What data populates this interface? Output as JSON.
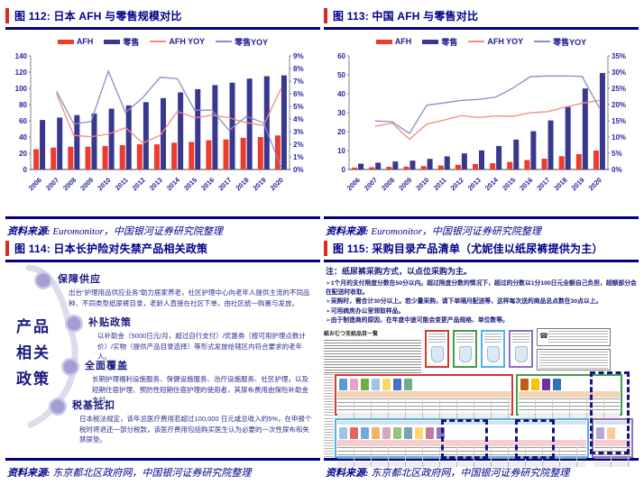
{
  "legend": {
    "afh": "AFH",
    "retail": "零售",
    "afh_yoy": "AFH YOY",
    "retail_yoy": "零售YOY"
  },
  "colors": {
    "afh_bar": "#ee3b30",
    "retail_bar": "#38388f",
    "afh_yoy_line": "#f48a80",
    "retail_yoy_line": "#8c8cc8",
    "title_navy": "#00008b",
    "accent_red": "#d92b21",
    "tick_text": "#2525a0"
  },
  "figures": {
    "fig112": {
      "title": "图 112: 日本 AFH 与零售规模对比",
      "source_label": "资料来源: ",
      "source_text": "Euromonitor，中国银河证券研究院整理"
    },
    "fig113": {
      "title": "图 113: 中国 AFH 与零售对比",
      "source_label": "资料来源: ",
      "source_text": "Euromonitor，中国银河证券研究院整理"
    },
    "fig114": {
      "title": "图 114: 日本长护险对失禁产品相关政策",
      "source_label": "资料来源: ",
      "source_text": "东京都北区政府网，中国银河证券研究院整理"
    },
    "fig115": {
      "title": "图 115: 采购目录产品清单（尤妮佳以纸尿裤提供为主）",
      "source_label": "资料来源: ",
      "source_text": "东京都北区政府网，中国银河证券研究院整理"
    }
  },
  "chart_data": [
    {
      "type": "bar",
      "title": "日本 AFH 与零售规模对比",
      "categories": [
        "2006",
        "2007",
        "2008",
        "2009",
        "2010",
        "2011",
        "2012",
        "2013",
        "2014",
        "2015",
        "2016",
        "2017",
        "2018",
        "2019",
        "2020"
      ],
      "series": [
        {
          "name": "AFH",
          "kind": "bar",
          "axis": "left",
          "color": "#ee3b30",
          "values": [
            25,
            27,
            28,
            28,
            29,
            30,
            31,
            31,
            33,
            34,
            36,
            37,
            39,
            40,
            42
          ]
        },
        {
          "name": "零售",
          "kind": "bar",
          "axis": "left",
          "color": "#38388f",
          "values": [
            61,
            64,
            67,
            69,
            75,
            79,
            83,
            88,
            95,
            99,
            104,
            107,
            112,
            115,
            116
          ]
        },
        {
          "name": "AFH YOY",
          "kind": "line",
          "axis": "right",
          "color": "#f48a80",
          "values": [
            null,
            6.0,
            2.7,
            2.6,
            2.8,
            3.3,
            2.1,
            2.7,
            4.6,
            4.1,
            4.3,
            4.1,
            3.7,
            3.5,
            6.4
          ]
        },
        {
          "name": "零售YOY",
          "kind": "line",
          "axis": "right",
          "color": "#8c8cc8",
          "values": [
            null,
            6.2,
            3.6,
            3.8,
            7.8,
            4.5,
            5.7,
            7.3,
            7.2,
            4.7,
            4.7,
            3.1,
            4.2,
            3.7,
            0.2
          ]
        }
      ],
      "left_axis": {
        "min": 0,
        "max": 140,
        "step": 20,
        "suffix": ""
      },
      "right_axis": {
        "min": 0,
        "max": 9,
        "step": 1,
        "suffix": "%"
      },
      "grid": false,
      "legend_position": "top"
    },
    {
      "type": "bar",
      "title": "中国 AFH 与零售对比",
      "categories": [
        "2006",
        "2007",
        "2008",
        "2009",
        "2010",
        "2011",
        "2012",
        "2013",
        "2014",
        "2015",
        "2016",
        "2017",
        "2018",
        "2019",
        "2020"
      ],
      "series": [
        {
          "name": "AFH",
          "kind": "bar",
          "axis": "left",
          "color": "#ee3b30",
          "values": [
            1.0,
            1.2,
            1.4,
            1.5,
            1.8,
            2.1,
            2.5,
            2.9,
            3.3,
            4.0,
            5.0,
            5.7,
            7.0,
            8.1,
            10.0
          ]
        },
        {
          "name": "零售",
          "kind": "bar",
          "axis": "left",
          "color": "#38388f",
          "values": [
            3.1,
            3.6,
            4.2,
            4.7,
            5.6,
            6.9,
            8.5,
            10.1,
            12.4,
            15.8,
            20.2,
            25.9,
            33.0,
            42.8,
            51.0
          ]
        },
        {
          "name": "AFH YOY",
          "kind": "line",
          "axis": "right",
          "color": "#f48a80",
          "values": [
            null,
            13.3,
            14.3,
            9.3,
            14.0,
            15.2,
            16.6,
            16.0,
            16.5,
            16.4,
            17.5,
            17.8,
            19.2,
            20.4,
            21.3
          ]
        },
        {
          "name": "零售YOY",
          "kind": "line",
          "axis": "right",
          "color": "#8c8cc8",
          "values": [
            null,
            15.0,
            14.7,
            11.1,
            19.8,
            20.5,
            21.3,
            21.6,
            22.3,
            25.1,
            28.6,
            28.8,
            28.8,
            28.7,
            19.0
          ]
        }
      ],
      "left_axis": {
        "min": 0,
        "max": 60,
        "step": 10,
        "suffix": ""
      },
      "right_axis": {
        "min": 0,
        "max": 35,
        "step": 5,
        "suffix": "%"
      },
      "grid": false,
      "legend_position": "top"
    }
  ],
  "fig114": {
    "side_label": "产品\n相关\n政策",
    "items": [
      {
        "heading": "保障供应",
        "body": "出台“护理用品供应业务”助力居家养老，社区护理中心向老年人提供主流的不同品种、不同类型纸尿裤目录，老龄人直接在社区下单，由社区统一购置与发放。"
      },
      {
        "heading": "补贴政策",
        "body": "以补助金（5000日元/月，超过自行支付）/优惠券（按可用护理点数计价）/实物（提供产品目录选择）等形式发放给辖区内符合要求的老年人。"
      },
      {
        "heading": "全面覆盖",
        "body": "长期护理福利设施服务、保健设施服务、治疗设施服务、社区护理，以及短期住宿护理、预防性短期住宿护理的使用者，其尿布费用由保险补助金支付。"
      },
      {
        "heading": "税基抵扣",
        "body": "日本税法规定，该年总医疗费用若超过100,000 日元或总收入的5%，在申报个税时将退还一部分税款，该医疗费用包括购买医生认为必要的一次性尿布和失禁尿垫。"
      }
    ]
  },
  "fig115": {
    "note_title": "注：纸尿裤采购方式，以点位采购为主。",
    "bullets": [
      "➢1个月的支付限度分数在50分以内。超过限度分数的情况下，超过的分数以1分100日元全额自己负担，超额部分会在配送时收取。",
      "➢采购时，需合计30分以上。若少量采购，请下单隔月配送等，这样每次送的商品总点数在30点以上。",
      "➢可用病房办公室领取样品。",
      "➢由于制造商的原因，在年度中途可能会变更产品规格、单位数等。"
    ],
    "catalog": {
      "title": "紙おむつ支給品目一覧",
      "type_box_colors": [
        "#d03a31",
        "#3f9e49",
        "#57b0e3",
        "#8f6fc0"
      ],
      "upper_thumbs_left": [
        "#5b9bd5",
        "#e8a0c8",
        "#70ad47",
        "#9dc3e6",
        "#ffd966",
        "#4472c4",
        "#70ad8e"
      ],
      "upper_thumbs_right": [
        "#c55a11",
        "#ffc000",
        "#7030a0",
        "#2e75b6"
      ],
      "lower_thumbs_left": [
        "#9dc3e6",
        "#e06666",
        "#6fa8dc",
        "#f6b26b",
        "#d5a6bd",
        "#93c47d",
        "#76a5af",
        "#ffd966",
        "#c27ba0",
        "#8e7cc3"
      ],
      "lower_thumbs_right": [
        "#b4a7d6",
        "#f9cb9c"
      ],
      "band_upper": "#f3d3b6",
      "band_lower": "#f5cfcf",
      "band_blue": "#cfe2f3",
      "highlight_dash": "#14147a",
      "section_borders": {
        "upper_left": "#d03a31",
        "upper_right": "#3f9e49",
        "lower_left": "#57b0e3",
        "lower_right": "#8f6fc0"
      }
    }
  }
}
